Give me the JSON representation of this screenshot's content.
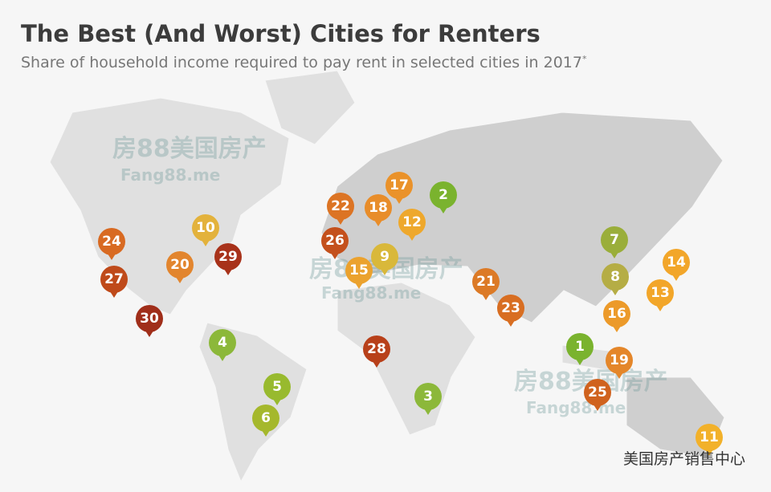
{
  "header": {
    "title": "The Best (And Worst) Cities for Renters",
    "subtitle": "Share of household income required to pay rent in selected cities in 2017",
    "footnote_mark": "*"
  },
  "markers": [
    {
      "rank": 1,
      "color": "#7ab32e"
    },
    {
      "rank": 2,
      "color": "#7ab32e"
    },
    {
      "rank": 3,
      "color": "#8cb83a"
    },
    {
      "rank": 4,
      "color": "#8cb83a"
    },
    {
      "rank": 5,
      "color": "#98ba2e"
    },
    {
      "rank": 6,
      "color": "#a5b82c"
    },
    {
      "rank": 7,
      "color": "#9aae3a"
    },
    {
      "rank": 8,
      "color": "#b5ad45"
    },
    {
      "rank": 9,
      "color": "#d9b83a"
    },
    {
      "rank": 10,
      "color": "#e3b23c"
    },
    {
      "rank": 11,
      "color": "#f2b12a"
    },
    {
      "rank": 12,
      "color": "#eea82c"
    },
    {
      "rank": 13,
      "color": "#f2a62a"
    },
    {
      "rank": 14,
      "color": "#f2a62a"
    },
    {
      "rank": 15,
      "color": "#eba22e"
    },
    {
      "rank": 16,
      "color": "#ec9a2a"
    },
    {
      "rank": 17,
      "color": "#ea922a"
    },
    {
      "rank": 18,
      "color": "#e88d2a"
    },
    {
      "rank": 19,
      "color": "#e4862a"
    },
    {
      "rank": 20,
      "color": "#e2852e"
    },
    {
      "rank": 21,
      "color": "#dc7a26"
    },
    {
      "rank": 22,
      "color": "#dc7424"
    },
    {
      "rank": 23,
      "color": "#d86e22"
    },
    {
      "rank": 24,
      "color": "#d86a22"
    },
    {
      "rank": 25,
      "color": "#d0621e"
    },
    {
      "rank": 26,
      "color": "#c4501c"
    },
    {
      "rank": 27,
      "color": "#bf4a1a"
    },
    {
      "rank": 28,
      "color": "#b8401a"
    },
    {
      "rank": 29,
      "color": "#a8321a"
    },
    {
      "rank": 30,
      "color": "#a02e1a"
    }
  ],
  "watermarks": {
    "brand": "房88美国房产",
    "site": "Fang88.me",
    "account": "美国房产销售中心"
  }
}
